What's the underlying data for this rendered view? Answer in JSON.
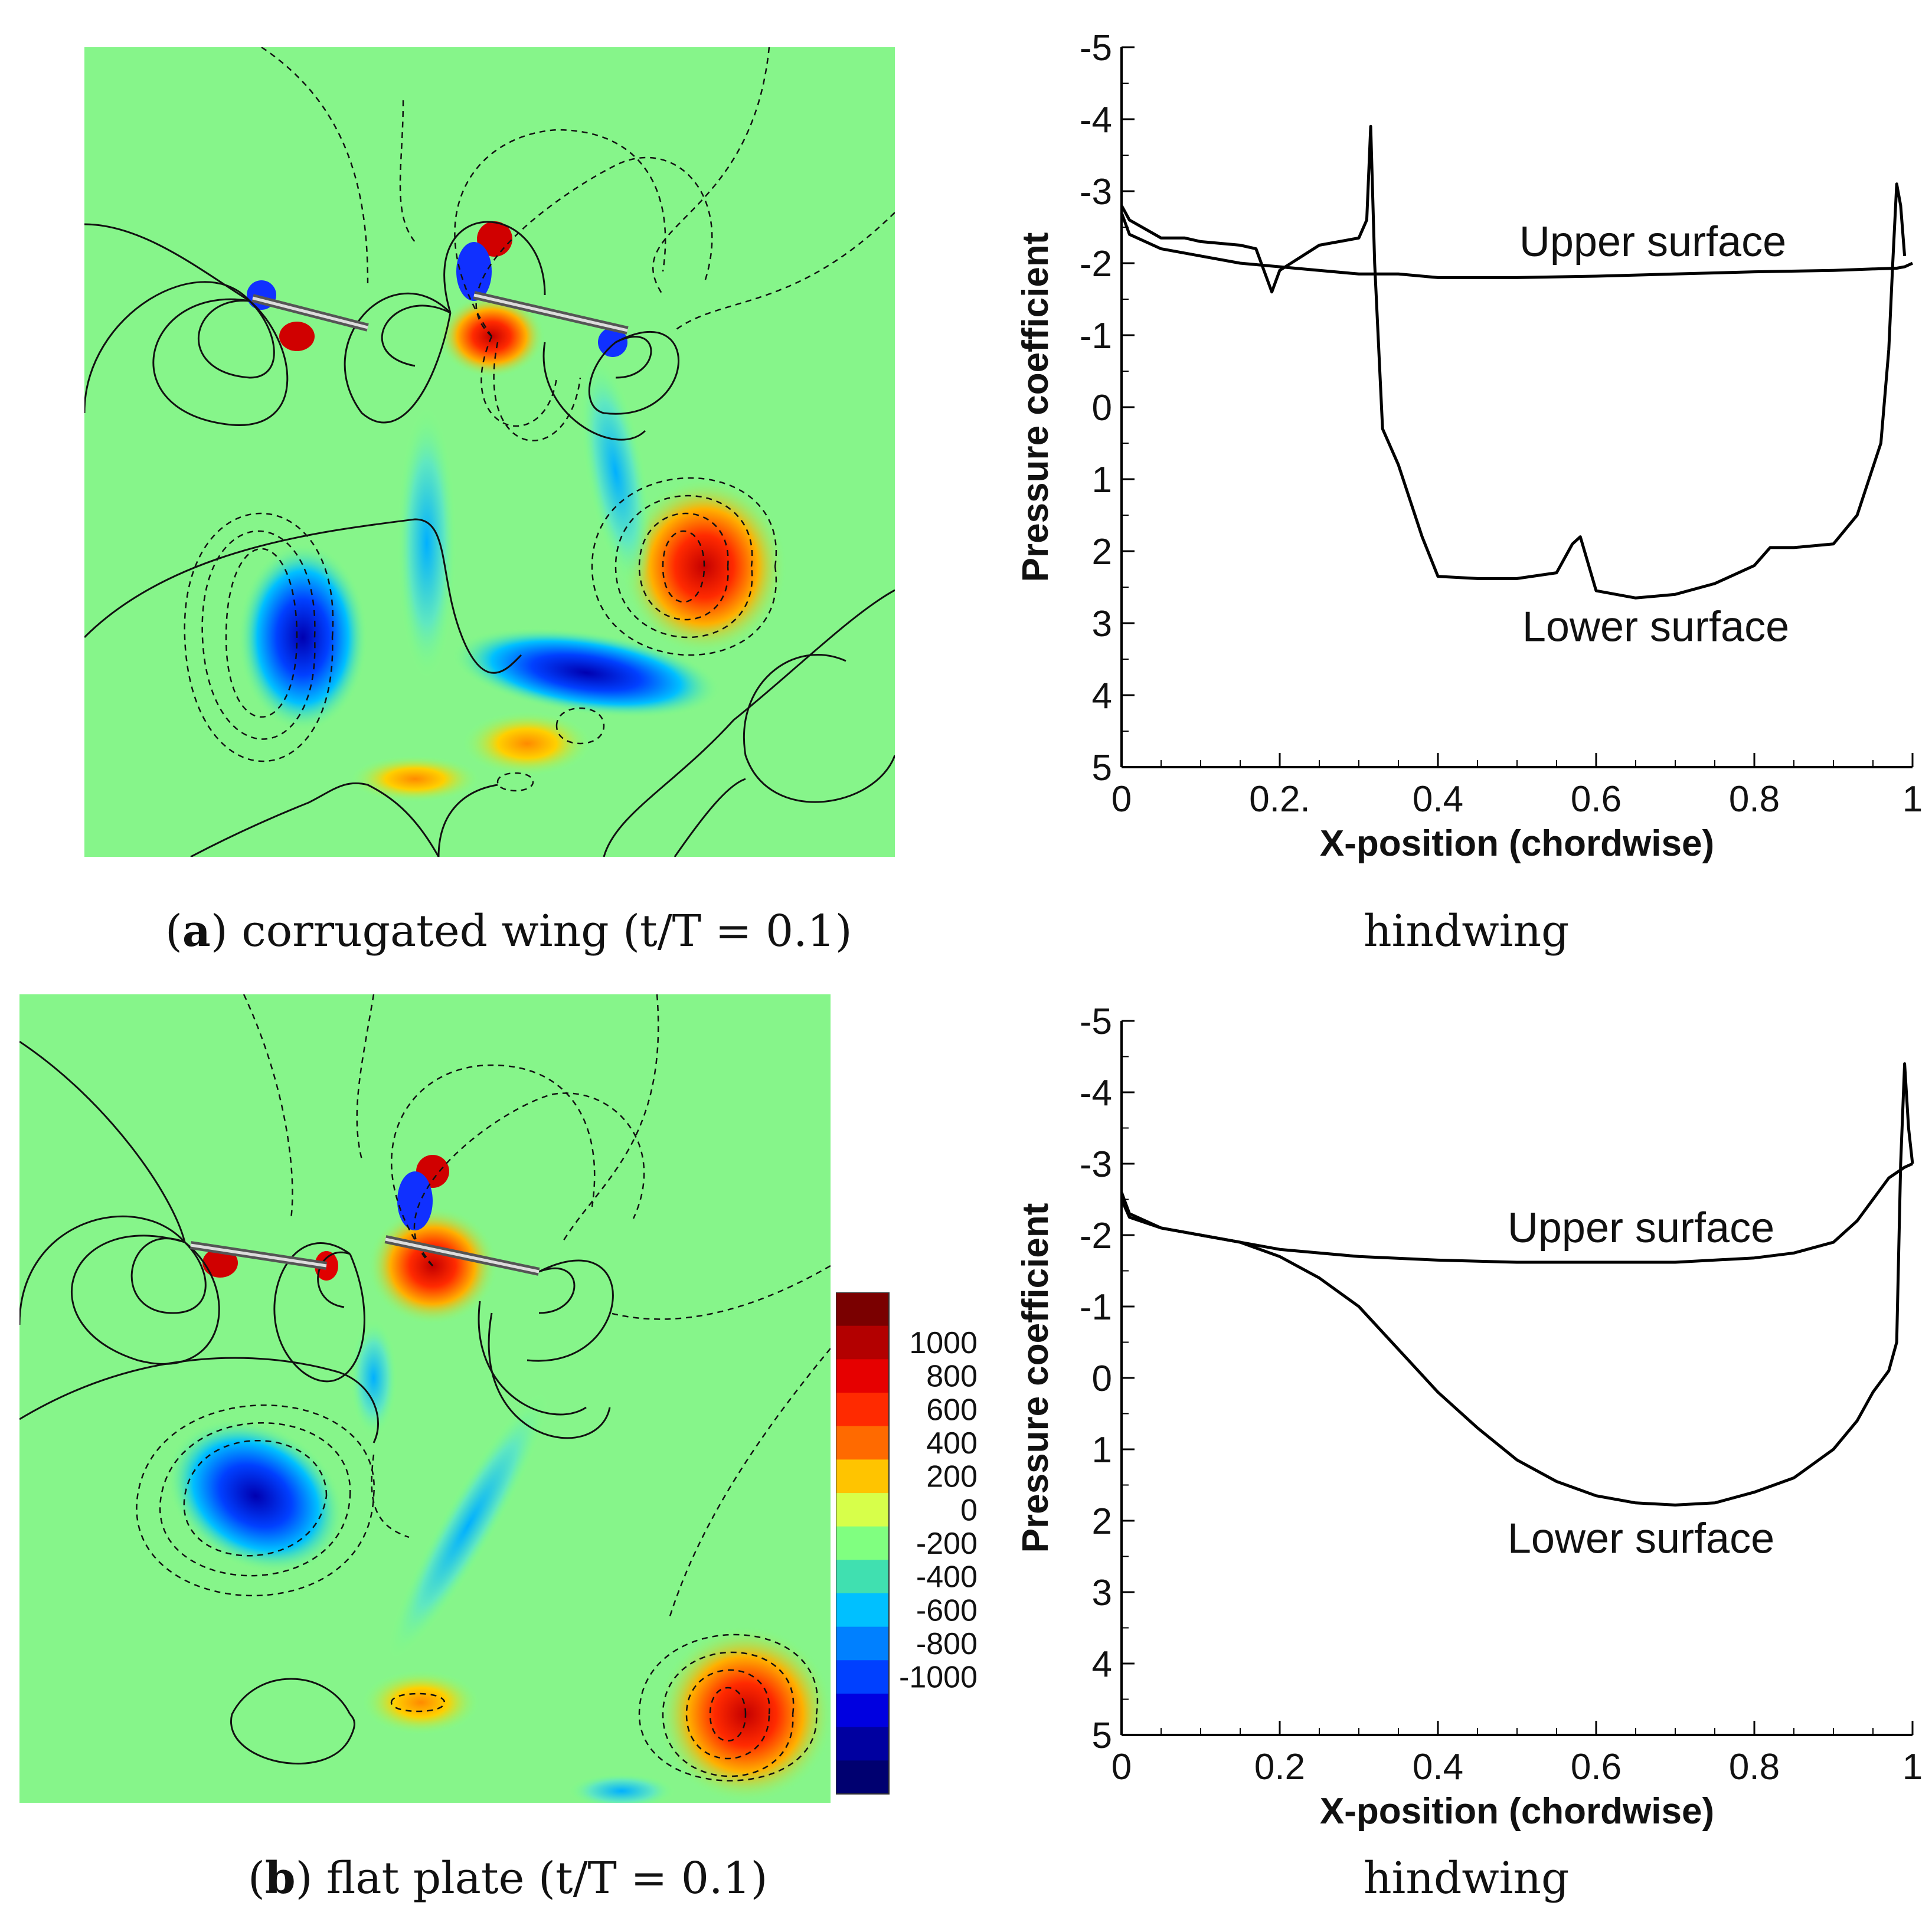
{
  "panels": [
    {
      "id": "a",
      "caption": {
        "letter": "a",
        "text": "corrugated wing (t/T = 0.1)"
      },
      "side_caption": "hindwing"
    },
    {
      "id": "b",
      "caption": {
        "letter": "b",
        "text": "flat plate (t/T = 0.1)"
      },
      "side_caption": "hindwing"
    }
  ],
  "colorbar": {
    "labels": [
      "1000",
      "800",
      "600",
      "400",
      "200",
      "0",
      "-200",
      "-400",
      "-600",
      "-800",
      "-1000"
    ],
    "colors": [
      "#7a0000",
      "#b30000",
      "#e60000",
      "#ff2a00",
      "#ff6a00",
      "#ffc400",
      "#d7ff4a",
      "#80ff80",
      "#40e0b0",
      "#00c0ff",
      "#0080ff",
      "#0040ff",
      "#0000e0",
      "#0000a0",
      "#000070"
    ]
  },
  "chart_data": [
    {
      "type": "line",
      "title": "hindwing",
      "xlabel": "X-position (chordwise)",
      "ylabel": "Pressure coefficient",
      "xlim": [
        0,
        1
      ],
      "ylim": [
        5,
        -5
      ],
      "x_ticks": [
        "0",
        "0.2.",
        "0.4",
        "0.6",
        "0.8",
        "1"
      ],
      "y_ticks": [
        "-5",
        "-4",
        "-3",
        "-2",
        "-1",
        "0",
        "1",
        "2",
        "3",
        "4",
        "5"
      ],
      "series": [
        {
          "name": "Upper surface",
          "x": [
            0,
            0.01,
            0.05,
            0.1,
            0.15,
            0.2,
            0.25,
            0.3,
            0.35,
            0.4,
            0.5,
            0.6,
            0.7,
            0.8,
            0.9,
            0.95,
            0.98,
            0.99,
            1.0
          ],
          "y": [
            -2.7,
            -2.4,
            -2.2,
            -2.1,
            -2.0,
            -1.95,
            -1.9,
            -1.85,
            -1.85,
            -1.8,
            -1.8,
            -1.82,
            -1.85,
            -1.88,
            -1.9,
            -1.92,
            -1.93,
            -1.95,
            -2.0
          ]
        },
        {
          "name": "Lower surface",
          "x": [
            0,
            0.01,
            0.05,
            0.08,
            0.1,
            0.15,
            0.17,
            0.18,
            0.19,
            0.2,
            0.25,
            0.3,
            0.31,
            0.315,
            0.32,
            0.33,
            0.35,
            0.38,
            0.4,
            0.45,
            0.5,
            0.55,
            0.57,
            0.58,
            0.6,
            0.65,
            0.7,
            0.75,
            0.8,
            0.82,
            0.85,
            0.9,
            0.93,
            0.96,
            0.97,
            0.975,
            0.98,
            0.985,
            0.99
          ],
          "y": [
            -2.8,
            -2.6,
            -2.35,
            -2.35,
            -2.3,
            -2.25,
            -2.2,
            -1.9,
            -1.6,
            -1.9,
            -2.25,
            -2.35,
            -2.6,
            -3.9,
            -2.0,
            0.3,
            0.8,
            1.8,
            2.35,
            2.38,
            2.38,
            2.3,
            1.9,
            1.8,
            2.55,
            2.65,
            2.6,
            2.45,
            2.2,
            1.95,
            1.95,
            1.9,
            1.5,
            0.5,
            -0.8,
            -2.0,
            -3.1,
            -2.8,
            -2.1
          ]
        }
      ]
    },
    {
      "type": "line",
      "title": "hindwing",
      "xlabel": "X-position (chordwise)",
      "ylabel": "Pressure coefficient",
      "xlim": [
        0,
        1
      ],
      "ylim": [
        5,
        -5
      ],
      "x_ticks": [
        "0",
        "0.2",
        "0.4",
        "0.6",
        "0.8",
        "1"
      ],
      "y_ticks": [
        "-5",
        "-4",
        "-3",
        "-2",
        "-1",
        "0",
        "1",
        "2",
        "3",
        "4",
        "5"
      ],
      "series": [
        {
          "name": "Upper surface",
          "x": [
            0,
            0.01,
            0.05,
            0.1,
            0.2,
            0.3,
            0.4,
            0.5,
            0.6,
            0.7,
            0.8,
            0.85,
            0.9,
            0.93,
            0.95,
            0.97,
            0.99,
            1.0
          ],
          "y": [
            -2.5,
            -2.25,
            -2.1,
            -2.0,
            -1.8,
            -1.7,
            -1.65,
            -1.62,
            -1.62,
            -1.62,
            -1.68,
            -1.75,
            -1.9,
            -2.2,
            -2.5,
            -2.8,
            -2.95,
            -3.0
          ]
        },
        {
          "name": "Lower surface",
          "x": [
            0,
            0.01,
            0.05,
            0.1,
            0.15,
            0.2,
            0.25,
            0.3,
            0.35,
            0.4,
            0.45,
            0.5,
            0.55,
            0.6,
            0.65,
            0.7,
            0.75,
            0.8,
            0.85,
            0.9,
            0.93,
            0.95,
            0.97,
            0.98,
            0.985,
            0.99,
            0.995,
            1.0
          ],
          "y": [
            -2.6,
            -2.3,
            -2.1,
            -2.0,
            -1.9,
            -1.7,
            -1.4,
            -1.0,
            -0.4,
            0.2,
            0.7,
            1.15,
            1.45,
            1.65,
            1.75,
            1.78,
            1.75,
            1.6,
            1.4,
            1.0,
            0.6,
            0.2,
            -0.1,
            -0.5,
            -3.0,
            -4.4,
            -3.5,
            -3.0
          ]
        }
      ]
    }
  ]
}
